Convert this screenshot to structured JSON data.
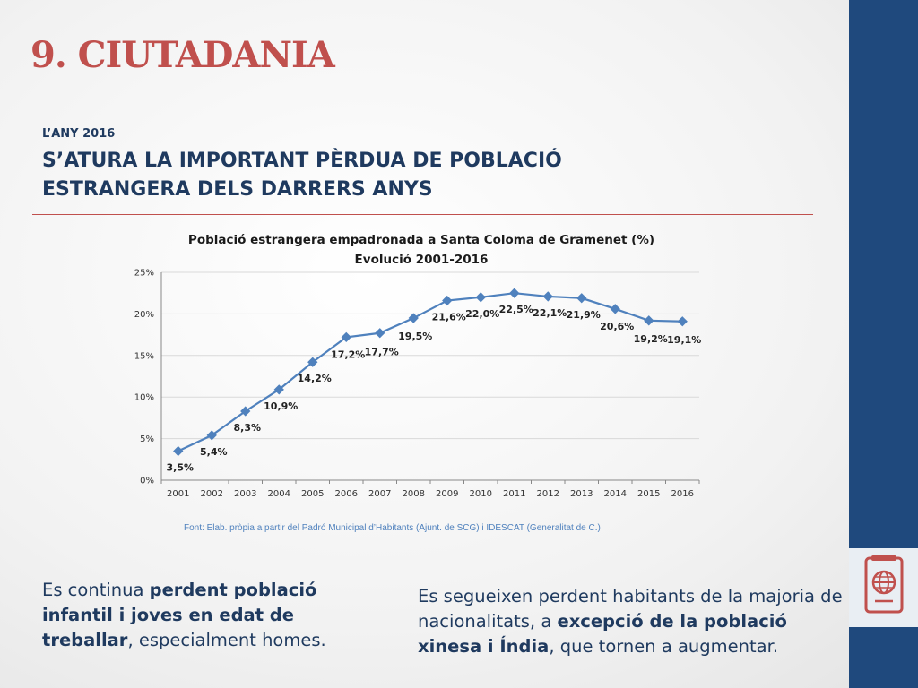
{
  "slide": {
    "title": "9. CIUTADANIA",
    "subtitle": "L’ANY 2016",
    "headline_line1": "S’ATURA LA IMPORTANT PÈRDUA DE POBLACIÓ",
    "headline_line2": "ESTRANGERA DELS DARRERS ANYS",
    "source": "Font: Elab. pròpia a partir del Padró Municipal d’Habitants (Ajunt. de SCG)  i IDESCAT (Generalitat de C.)",
    "left_text": {
      "pre": "Es continua ",
      "bold": "perdent població infantil i joves en edat de treballar",
      "post": ", especialment homes."
    },
    "right_text": {
      "pre": "Es segueixen perdent habitants de la majoria de nacionalitats, a ",
      "bold1": "excepció de la població xinesa i Índia",
      "post": ", que tornen a augmentar."
    }
  },
  "colors": {
    "accent": "#c0504d",
    "sidebar": "#1f497d",
    "line": "#4f81bd",
    "text": "#1f3a5f"
  },
  "icons": {
    "sidebar": "passport-globe-icon"
  },
  "chart_data": {
    "type": "line",
    "title": "Població estrangera empadronada a Santa Coloma de Gramenet (%)",
    "subtitle": "Evolució 2001-2016",
    "categories": [
      "2001",
      "2002",
      "2003",
      "2004",
      "2005",
      "2006",
      "2007",
      "2008",
      "2009",
      "2010",
      "2011",
      "2012",
      "2013",
      "2014",
      "2015",
      "2016"
    ],
    "values": [
      3.5,
      5.4,
      8.3,
      10.9,
      14.2,
      17.2,
      17.7,
      19.5,
      21.6,
      22.0,
      22.5,
      22.1,
      21.9,
      20.6,
      19.2,
      19.1
    ],
    "value_labels": [
      "3,5%",
      "5,4%",
      "8,3%",
      "10,9%",
      "14,2%",
      "17,2%",
      "17,7%",
      "19,5%",
      "21,6%",
      "22,0%",
      "22,5%",
      "22,1%",
      "21,9%",
      "20,6%",
      "19,2%",
      "19,1%"
    ],
    "yticks": [
      "0%",
      "5%",
      "10%",
      "15%",
      "20%",
      "25%"
    ],
    "ylim": [
      0,
      25
    ],
    "grid": true,
    "legend": "none"
  }
}
